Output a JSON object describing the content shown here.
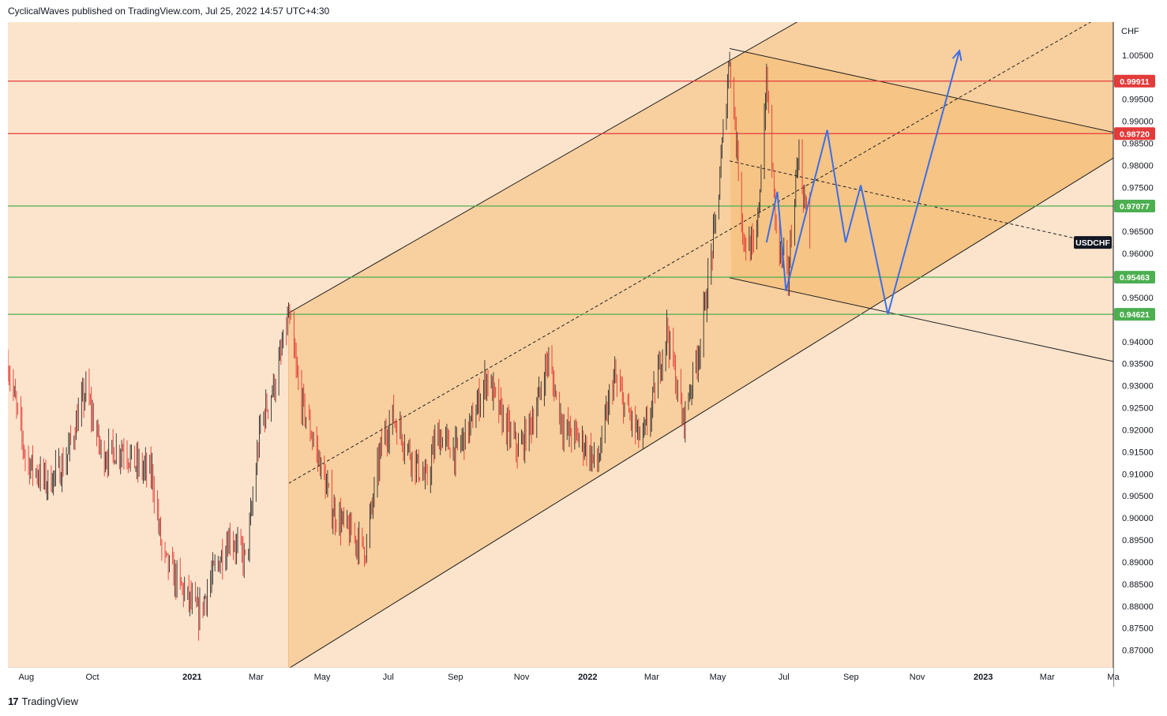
{
  "header": {
    "text": "CyclicalWaves published on TradingView.com, Jul 25, 2022 14:57 UTC+4:30"
  },
  "footer": {
    "brand": "TradingView",
    "logo_text": "17"
  },
  "colors": {
    "background": "#fce4cc",
    "channel_fill": "#f8cf9e",
    "wedge_fill": "#f6c07c",
    "resistance": "#e33a3a",
    "support": "#4caf50",
    "forecast": "#3b6ee8",
    "bull_candle": "#2d2d2d",
    "bear_candle": "#e53935"
  },
  "chart_data": {
    "type": "candlestick",
    "symbol": "USDCHF",
    "currency": "CHF",
    "x_start": "2020-07-15",
    "x_end": "2023-05-01",
    "ylim": [
      0.866,
      1.0125
    ],
    "y_ticks": [
      "1.00500",
      "0.99500",
      "0.99000",
      "0.98500",
      "0.98000",
      "0.97500",
      "0.96500",
      "0.96000",
      "0.95000",
      "0.94000",
      "0.93500",
      "0.93000",
      "0.92500",
      "0.92000",
      "0.91500",
      "0.91000",
      "0.90500",
      "0.90000",
      "0.89500",
      "0.89000",
      "0.88500",
      "0.88000",
      "0.87500",
      "0.87000"
    ],
    "x_ticks": [
      {
        "label": "Aug",
        "date": "2020-08-01"
      },
      {
        "label": "Oct",
        "date": "2020-10-01"
      },
      {
        "label": "2021",
        "date": "2021-01-01"
      },
      {
        "label": "Mar",
        "date": "2021-03-01"
      },
      {
        "label": "May",
        "date": "2021-05-01"
      },
      {
        "label": "Jul",
        "date": "2021-07-01"
      },
      {
        "label": "Sep",
        "date": "2021-09-01"
      },
      {
        "label": "Nov",
        "date": "2021-11-01"
      },
      {
        "label": "2022",
        "date": "2022-01-01"
      },
      {
        "label": "Mar",
        "date": "2022-03-01"
      },
      {
        "label": "May",
        "date": "2022-05-01"
      },
      {
        "label": "Jul",
        "date": "2022-07-01"
      },
      {
        "label": "Sep",
        "date": "2022-09-01"
      },
      {
        "label": "Nov",
        "date": "2022-11-01"
      },
      {
        "label": "2023",
        "date": "2023-01-01"
      },
      {
        "label": "Mar",
        "date": "2023-03-01"
      },
      {
        "label": "Ma",
        "date": "2023-05-01"
      }
    ],
    "price_path": [
      [
        "2020-07-15",
        0.935
      ],
      [
        "2020-08-01",
        0.913
      ],
      [
        "2020-08-20",
        0.908
      ],
      [
        "2020-09-05",
        0.912
      ],
      [
        "2020-09-25",
        0.929
      ],
      [
        "2020-10-10",
        0.914
      ],
      [
        "2020-10-30",
        0.916
      ],
      [
        "2020-11-10",
        0.912
      ],
      [
        "2020-11-25",
        0.91
      ],
      [
        "2020-12-05",
        0.891
      ],
      [
        "2020-12-20",
        0.885
      ],
      [
        "2021-01-07",
        0.878
      ],
      [
        "2021-01-20",
        0.887
      ],
      [
        "2021-02-05",
        0.896
      ],
      [
        "2021-02-20",
        0.89
      ],
      [
        "2021-03-05",
        0.921
      ],
      [
        "2021-03-20",
        0.932
      ],
      [
        "2021-03-31",
        0.946
      ],
      [
        "2021-04-10",
        0.928
      ],
      [
        "2021-04-25",
        0.916
      ],
      [
        "2021-05-10",
        0.902
      ],
      [
        "2021-05-25",
        0.897
      ],
      [
        "2021-06-10",
        0.893
      ],
      [
        "2021-06-25",
        0.917
      ],
      [
        "2021-07-05",
        0.923
      ],
      [
        "2021-07-25",
        0.913
      ],
      [
        "2021-08-05",
        0.908
      ],
      [
        "2021-08-15",
        0.919
      ],
      [
        "2021-09-01",
        0.915
      ],
      [
        "2021-09-15",
        0.921
      ],
      [
        "2021-09-30",
        0.932
      ],
      [
        "2021-10-15",
        0.922
      ],
      [
        "2021-10-30",
        0.915
      ],
      [
        "2021-11-15",
        0.925
      ],
      [
        "2021-11-25",
        0.936
      ],
      [
        "2021-12-10",
        0.92
      ],
      [
        "2021-12-25",
        0.918
      ],
      [
        "2022-01-10",
        0.912
      ],
      [
        "2022-01-25",
        0.932
      ],
      [
        "2022-02-05",
        0.925
      ],
      [
        "2022-02-20",
        0.917
      ],
      [
        "2022-03-01",
        0.925
      ],
      [
        "2022-03-15",
        0.943
      ],
      [
        "2022-03-30",
        0.922
      ],
      [
        "2022-04-15",
        0.94
      ],
      [
        "2022-04-30",
        0.969
      ],
      [
        "2022-05-12",
        1.005
      ],
      [
        "2022-05-25",
        0.963
      ],
      [
        "2022-06-05",
        0.96
      ],
      [
        "2022-06-15",
        0.999
      ],
      [
        "2022-06-25",
        0.962
      ],
      [
        "2022-07-05",
        0.955
      ],
      [
        "2022-07-14",
        0.983
      ],
      [
        "2022-07-25",
        0.963
      ]
    ],
    "horizontal_levels": [
      {
        "value": 0.99911,
        "label": "0.99911",
        "role": "resistance"
      },
      {
        "value": 0.9872,
        "label": "0.98720",
        "role": "resistance"
      },
      {
        "value": 0.97077,
        "label": "0.97077",
        "role": "support"
      },
      {
        "value": 0.95463,
        "label": "0.95463",
        "role": "support"
      },
      {
        "value": 0.94621,
        "label": "0.94621",
        "role": "support"
      }
    ],
    "last_price_label": "USDCHF",
    "last_price": 0.9625,
    "channel": {
      "upper": [
        [
          "2021-03-31",
          0.9465
        ],
        [
          "2022-07-13",
          1.0125
        ]
      ],
      "lower": [
        [
          "2021-04-01",
          0.866
        ],
        [
          "2022-09-10",
          0.9462
        ],
        [
          "2023-05-01",
          0.975
        ]
      ],
      "mid": [
        [
          "2021-04-01",
          0.908
        ],
        [
          "2023-04-10",
          1.0125
        ]
      ]
    },
    "wedge": {
      "upper": [
        [
          "2022-05-12",
          1.0065
        ],
        [
          "2023-05-01",
          0.9875
        ]
      ],
      "lower": [
        [
          "2022-05-12",
          0.9545
        ],
        [
          "2023-05-01",
          0.9355
        ]
      ],
      "mid": [
        [
          "2022-05-12",
          0.981
        ],
        [
          "2023-05-01",
          0.9615
        ]
      ]
    },
    "forecast_path": [
      [
        "2022-06-15",
        0.9625
      ],
      [
        "2022-06-25",
        0.974
      ],
      [
        "2022-07-03",
        0.9515
      ],
      [
        "2022-08-10",
        0.988
      ],
      [
        "2022-08-27",
        0.9625
      ],
      [
        "2022-09-10",
        0.9755
      ],
      [
        "2022-10-05",
        0.9462
      ],
      [
        "2022-12-10",
        1.006
      ]
    ]
  }
}
